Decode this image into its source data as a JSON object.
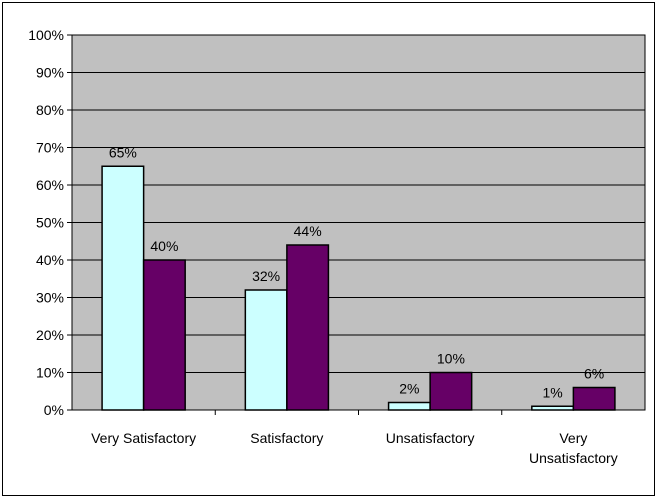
{
  "chart_data": {
    "type": "bar",
    "categories": [
      "Very Satisfactory",
      "Satisfactory",
      "Unsatisfactory",
      "Very Unsatisfactory"
    ],
    "category_label_lines": [
      [
        "Very Satisfactory"
      ],
      [
        "Satisfactory"
      ],
      [
        "Unsatisfactory"
      ],
      [
        "Very",
        "Unsatisfactory"
      ]
    ],
    "series": [
      {
        "values": [
          65,
          32,
          2,
          1
        ],
        "labels": [
          "65%",
          "32%",
          "2%",
          "1%"
        ],
        "color": "#CCFFFF"
      },
      {
        "values": [
          40,
          44,
          10,
          6
        ],
        "labels": [
          "40%",
          "44%",
          "10%",
          "6%"
        ],
        "color": "#660066"
      }
    ],
    "ylim": [
      0,
      100
    ],
    "yticks": [
      "0%",
      "10%",
      "20%",
      "30%",
      "40%",
      "50%",
      "60%",
      "70%",
      "80%",
      "90%",
      "100%"
    ],
    "plot_background": "#C0C0C0",
    "grid": true,
    "legend": "none"
  }
}
